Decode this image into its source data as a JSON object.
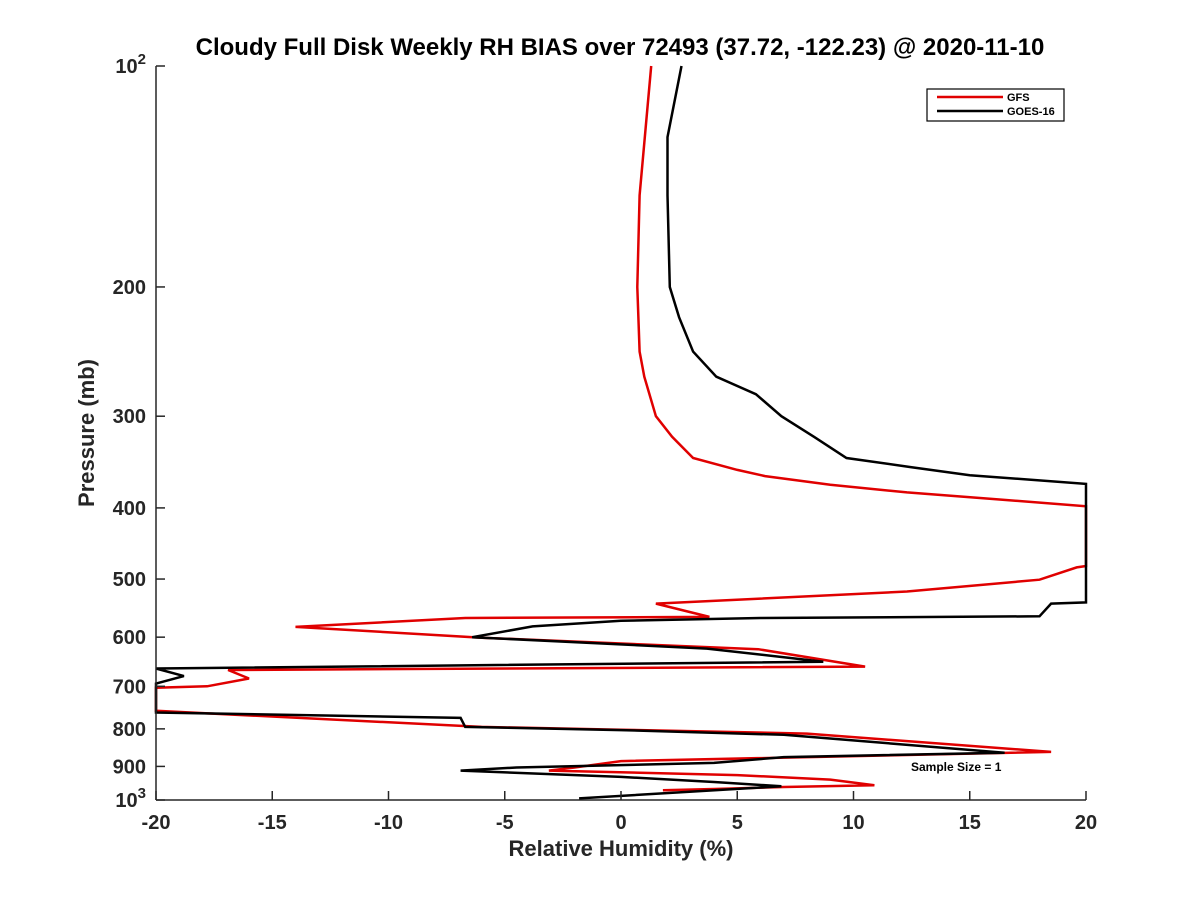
{
  "chart_data": {
    "type": "line",
    "title": "Cloudy Full Disk Weekly RH BIAS over 72493 (37.72, -122.23) @ 2020-11-10",
    "xlabel": "Relative Humidity (%)",
    "ylabel": "Pressure (mb)",
    "xlim": [
      -20,
      20
    ],
    "ylim": [
      100,
      1000
    ],
    "y_scale": "log",
    "y_reversed": true,
    "grid": false,
    "legend_position": "top-right",
    "x_ticks": [
      {
        "value": -20,
        "label": "-20"
      },
      {
        "value": -15,
        "label": "-15"
      },
      {
        "value": -10,
        "label": "-10"
      },
      {
        "value": -5,
        "label": "-5"
      },
      {
        "value": 0,
        "label": "0"
      },
      {
        "value": 5,
        "label": "5"
      },
      {
        "value": 10,
        "label": "10"
      },
      {
        "value": 15,
        "label": "15"
      },
      {
        "value": 20,
        "label": "20"
      }
    ],
    "y_ticks": [
      {
        "value": 100,
        "base": "10",
        "exp": "2"
      },
      {
        "value": 200,
        "label": "200"
      },
      {
        "value": 300,
        "label": "300"
      },
      {
        "value": 400,
        "label": "400"
      },
      {
        "value": 500,
        "label": "500"
      },
      {
        "value": 600,
        "label": "600"
      },
      {
        "value": 700,
        "label": "700"
      },
      {
        "value": 800,
        "label": "800"
      },
      {
        "value": 900,
        "label": "900"
      },
      {
        "value": 1000,
        "base": "10",
        "exp": "3"
      }
    ],
    "annotation": "Sample Size = 1",
    "series": [
      {
        "name": "GFS",
        "color": "#e00000",
        "points": [
          [
            1.3,
            100
          ],
          [
            0.8,
            150
          ],
          [
            0.7,
            200
          ],
          [
            0.8,
            245
          ],
          [
            1.0,
            265
          ],
          [
            1.5,
            300
          ],
          [
            2.2,
            320
          ],
          [
            3.1,
            342
          ],
          [
            5.0,
            355
          ],
          [
            6.2,
            362
          ],
          [
            9.0,
            372
          ],
          [
            12.3,
            381
          ],
          [
            16.0,
            389
          ],
          [
            20.0,
            398
          ],
          [
            20.0,
            480
          ],
          [
            19.6,
            482
          ],
          [
            18.0,
            501
          ],
          [
            12.3,
            520
          ],
          [
            1.5,
            540
          ],
          [
            3.8,
            563
          ],
          [
            -6.7,
            565
          ],
          [
            -14.0,
            581
          ],
          [
            -6.0,
            601
          ],
          [
            5.9,
            623
          ],
          [
            10.5,
            658
          ],
          [
            -16.9,
            665
          ],
          [
            -16.0,
            683
          ],
          [
            -17.8,
            700
          ],
          [
            -20.0,
            703
          ],
          [
            -20.0,
            756
          ],
          [
            -6.0,
            795
          ],
          [
            0.0,
            802
          ],
          [
            8.0,
            812
          ],
          [
            18.5,
            860
          ],
          [
            0.0,
            885
          ],
          [
            -2.0,
            903
          ],
          [
            -3.1,
            912
          ],
          [
            5.0,
            925
          ],
          [
            9.0,
            938
          ],
          [
            10.9,
            955
          ],
          [
            7.0,
            960
          ],
          [
            4.0,
            966
          ],
          [
            1.8,
            970
          ]
        ]
      },
      {
        "name": "GOES-16",
        "color": "#000000",
        "points": [
          [
            2.6,
            100
          ],
          [
            2.0,
            125
          ],
          [
            2.0,
            150
          ],
          [
            2.1,
            200
          ],
          [
            2.5,
            220
          ],
          [
            3.1,
            245
          ],
          [
            4.1,
            265
          ],
          [
            5.8,
            280
          ],
          [
            6.9,
            300
          ],
          [
            8.3,
            320
          ],
          [
            9.7,
            342
          ],
          [
            12.5,
            352
          ],
          [
            15.0,
            361
          ],
          [
            20.0,
            371
          ],
          [
            20.0,
            538
          ],
          [
            18.5,
            540
          ],
          [
            18.0,
            562
          ],
          [
            6.0,
            565
          ],
          [
            0.0,
            570
          ],
          [
            -3.8,
            580
          ],
          [
            -6.4,
            600
          ],
          [
            3.7,
            622
          ],
          [
            8.7,
            648
          ],
          [
            -20.0,
            662
          ],
          [
            -18.8,
            678
          ],
          [
            -20.0,
            694
          ],
          [
            -20.0,
            760
          ],
          [
            -6.9,
            773
          ],
          [
            -6.7,
            795
          ],
          [
            0.0,
            803
          ],
          [
            7.0,
            815
          ],
          [
            16.5,
            862
          ],
          [
            7.0,
            874
          ],
          [
            4.0,
            890
          ],
          [
            -4.5,
            903
          ],
          [
            -6.9,
            912
          ],
          [
            0.0,
            930
          ],
          [
            4.0,
            945
          ],
          [
            6.9,
            958
          ],
          [
            -1.8,
            995
          ]
        ]
      }
    ]
  }
}
